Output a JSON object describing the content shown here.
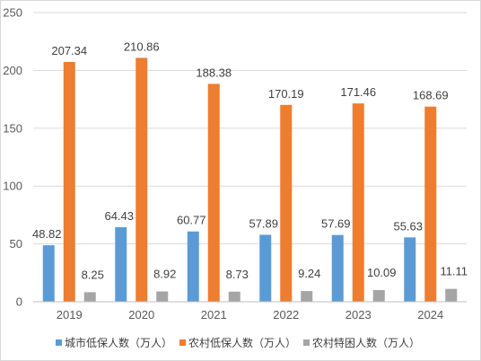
{
  "chart_data": {
    "type": "bar",
    "title": "",
    "xlabel": "",
    "ylabel": "",
    "ylim": [
      0,
      250
    ],
    "yticks": [
      0,
      50,
      100,
      150,
      200,
      250
    ],
    "grid": true,
    "legend_position": "bottom",
    "categories": [
      "2019",
      "2020",
      "2021",
      "2022",
      "2023",
      "2024"
    ],
    "series": [
      {
        "name": "城市低保人数（万人）",
        "color": "#5b9bd5",
        "values": [
          48.82,
          64.43,
          60.77,
          57.89,
          57.69,
          55.63
        ],
        "labels": [
          "48.82",
          "64.43",
          "60.77",
          "57.89",
          "57.69",
          "55.63"
        ]
      },
      {
        "name": "农村低保人数（万人）",
        "color": "#ed7d31",
        "values": [
          207.34,
          210.86,
          188.38,
          170.19,
          171.46,
          168.69
        ],
        "labels": [
          "207.34",
          "210.86",
          "188.38",
          "170.19",
          "171.46",
          "168.69"
        ]
      },
      {
        "name": "农村特困人数（万人）",
        "color": "#a5a5a5",
        "values": [
          8.25,
          8.92,
          8.73,
          9.24,
          10.09,
          11.11
        ],
        "labels": [
          "8.25",
          "8.92",
          "8.73",
          "9.24",
          "10.09",
          "11.11"
        ]
      }
    ]
  }
}
